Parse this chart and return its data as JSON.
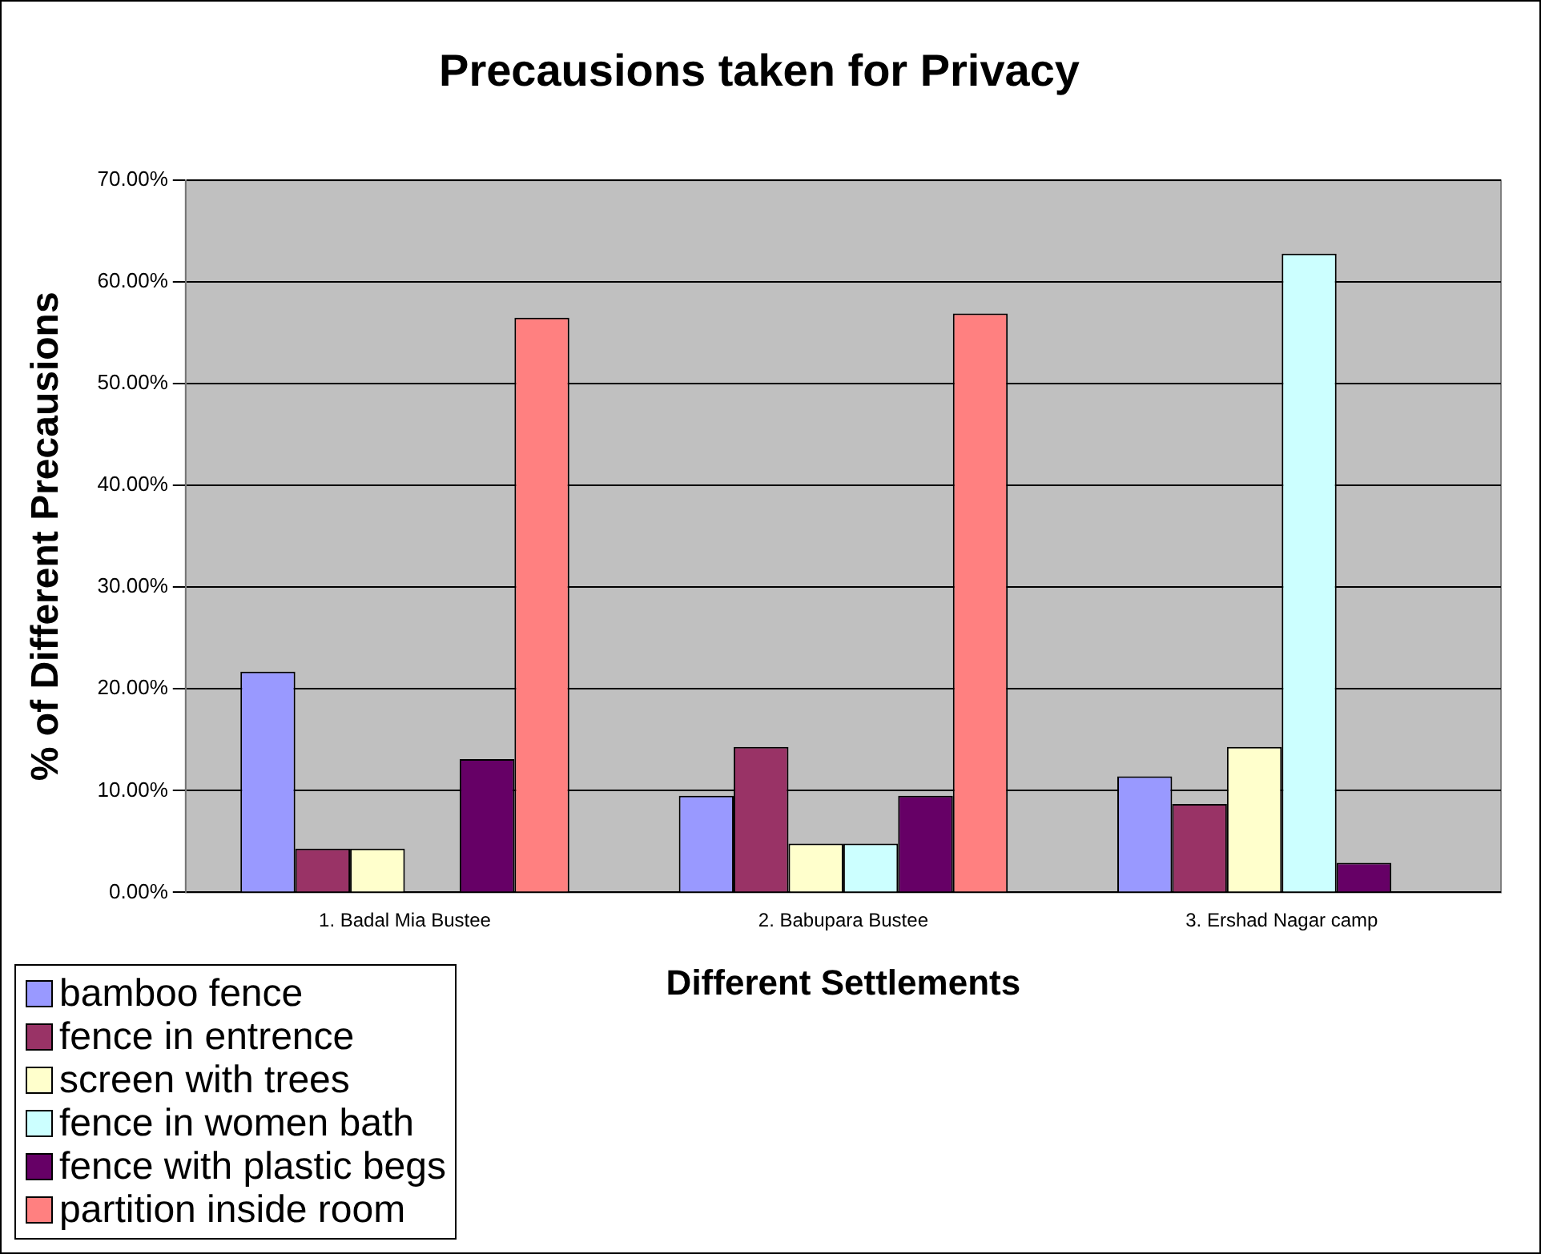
{
  "chart_data": {
    "type": "bar",
    "title": "Precausions taken for Privacy",
    "xlabel": "Different Settlements",
    "ylabel": "% of Different Precausions",
    "categories": [
      "1. Badal Mia Bustee",
      "2. Babupara Bustee",
      "3. Ershad Nagar camp"
    ],
    "series": [
      {
        "name": "bamboo fence",
        "color": "#9999ff",
        "values": [
          21.7,
          9.5,
          11.4
        ]
      },
      {
        "name": "fence in entrence",
        "color": "#993366",
        "values": [
          4.3,
          14.3,
          8.7
        ]
      },
      {
        "name": "screen with trees",
        "color": "#ffffcc",
        "values": [
          4.3,
          4.8,
          14.3
        ]
      },
      {
        "name": "fence in women bath",
        "color": "#ccffff",
        "values": [
          null,
          4.8,
          62.8
        ]
      },
      {
        "name": "fence with plastic begs",
        "color": "#660066",
        "values": [
          13.1,
          9.5,
          2.9
        ]
      },
      {
        "name": "partition inside room",
        "color": "#ff8080",
        "values": [
          56.5,
          56.9,
          null
        ]
      }
    ],
    "ylim": [
      0,
      70
    ],
    "yticks": [
      {
        "value": 0,
        "label": "0.00%"
      },
      {
        "value": 10,
        "label": "10.00%"
      },
      {
        "value": 20,
        "label": "20.00%"
      },
      {
        "value": 30,
        "label": "30.00%"
      },
      {
        "value": 40,
        "label": "40.00%"
      },
      {
        "value": 50,
        "label": "50.00%"
      },
      {
        "value": 60,
        "label": "60.00%"
      },
      {
        "value": 70,
        "label": "70.00%"
      }
    ],
    "grid": "y",
    "legend": "bottom left"
  }
}
